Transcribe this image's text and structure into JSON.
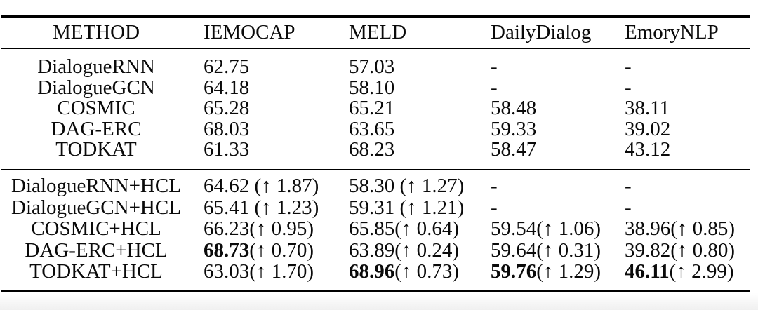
{
  "colors": {
    "background": "#ffffff",
    "text": "#0a0a0a",
    "rule": "#000000",
    "bottom_strip": "#f0f0f0"
  },
  "table": {
    "columns": [
      "METHOD",
      "IEMOCAP",
      "MELD",
      "DailyDialog",
      "EmoryNLP"
    ],
    "up_arrow_glyph": "↑",
    "sections": [
      {
        "rows": [
          {
            "method": "DialogueRNN",
            "cells": [
              {
                "value": "62.75"
              },
              {
                "value": "57.03"
              },
              {
                "value": "-"
              },
              {
                "value": "-"
              }
            ]
          },
          {
            "method": "DialogueGCN",
            "cells": [
              {
                "value": "64.18"
              },
              {
                "value": "58.10"
              },
              {
                "value": "-"
              },
              {
                "value": "-"
              }
            ]
          },
          {
            "method": "COSMIC",
            "cells": [
              {
                "value": "65.28"
              },
              {
                "value": "65.21"
              },
              {
                "value": "58.48"
              },
              {
                "value": "38.11"
              }
            ]
          },
          {
            "method": "DAG-ERC",
            "cells": [
              {
                "value": "68.03"
              },
              {
                "value": "63.65"
              },
              {
                "value": "59.33"
              },
              {
                "value": "39.02"
              }
            ]
          },
          {
            "method": "TODKAT",
            "cells": [
              {
                "value": "61.33"
              },
              {
                "value": "68.23"
              },
              {
                "value": "58.47"
              },
              {
                "value": "43.12"
              }
            ]
          }
        ]
      },
      {
        "rows": [
          {
            "method": "DialogueRNN+HCL",
            "cells": [
              {
                "value": "64.62",
                "suffix": " (↑ 1.87)"
              },
              {
                "value": "58.30",
                "suffix": " (↑ 1.27)"
              },
              {
                "value": "-"
              },
              {
                "value": "-"
              }
            ]
          },
          {
            "method": "DialogueGCN+HCL",
            "cells": [
              {
                "value": "65.41",
                "suffix": " (↑ 1.23)"
              },
              {
                "value": "59.31",
                "suffix": " (↑ 1.21)"
              },
              {
                "value": "-"
              },
              {
                "value": "-"
              }
            ]
          },
          {
            "method": "COSMIC+HCL",
            "cells": [
              {
                "value": "66.23",
                "suffix": "(↑ 0.95)"
              },
              {
                "value": "65.85",
                "suffix": "(↑ 0.64)"
              },
              {
                "value": "59.54",
                "suffix": "(↑ 1.06)"
              },
              {
                "value": "38.96",
                "suffix": "(↑ 0.85)"
              }
            ]
          },
          {
            "method": "DAG-ERC+HCL",
            "cells": [
              {
                "value": "68.73",
                "suffix": "(↑ 0.70)",
                "bold": true
              },
              {
                "value": "63.89",
                "suffix": "(↑ 0.24)"
              },
              {
                "value": "59.64",
                "suffix": "(↑ 0.31)"
              },
              {
                "value": "39.82",
                "suffix": "(↑ 0.80)"
              }
            ]
          },
          {
            "method": "TODKAT+HCL",
            "cells": [
              {
                "value": "63.03",
                "suffix": "(↑ 1.70)"
              },
              {
                "value": "68.96",
                "suffix": "(↑ 0.73)",
                "bold": true
              },
              {
                "value": "59.76",
                "suffix": "(↑ 1.29)",
                "bold": true
              },
              {
                "value": "46.11",
                "suffix": "(↑ 2.99)",
                "bold": true
              }
            ]
          }
        ]
      }
    ]
  }
}
